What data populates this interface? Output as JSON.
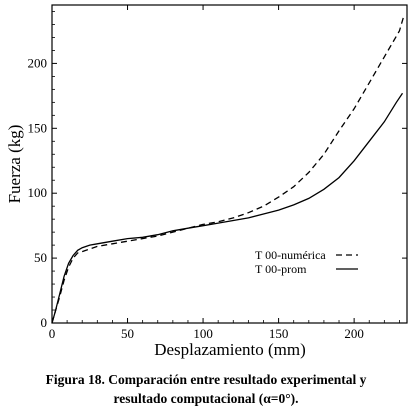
{
  "chart_data": {
    "type": "line",
    "xlabel": "Desplazamiento (mm)",
    "ylabel": "Fuerza (kg)",
    "xlim": [
      0,
      235
    ],
    "ylim": [
      0,
      245
    ],
    "xticks": [
      0,
      50,
      100,
      150,
      200
    ],
    "yticks": [
      0,
      50,
      100,
      150,
      200
    ],
    "grid": false,
    "legend_position": "right, mid-height",
    "series": [
      {
        "name": "T 00-numérica",
        "style": "dashed",
        "x": [
          0,
          2,
          5,
          8,
          11,
          14,
          17,
          20,
          25,
          30,
          40,
          50,
          60,
          70,
          80,
          90,
          100,
          110,
          120,
          130,
          140,
          150,
          160,
          170,
          180,
          190,
          200,
          210,
          220,
          230,
          233
        ],
        "y": [
          0,
          8,
          20,
          33,
          43,
          50,
          54,
          55,
          57,
          59,
          61,
          63,
          65,
          67,
          70,
          73,
          76,
          78,
          81,
          85,
          90,
          97,
          105,
          116,
          130,
          148,
          165,
          185,
          205,
          225,
          237
        ]
      },
      {
        "name": "T 00-prom",
        "style": "solid",
        "x": [
          0,
          2,
          5,
          8,
          11,
          14,
          17,
          20,
          25,
          30,
          40,
          50,
          60,
          70,
          80,
          90,
          100,
          110,
          120,
          130,
          140,
          150,
          160,
          170,
          180,
          190,
          200,
          210,
          220,
          228,
          232
        ],
        "y": [
          0,
          8,
          22,
          36,
          46,
          52,
          56,
          58,
          60,
          61,
          63,
          65,
          66,
          68,
          71,
          73,
          75,
          77,
          79,
          81,
          84,
          87,
          91,
          96,
          103,
          112,
          125,
          140,
          155,
          170,
          177
        ]
      }
    ]
  },
  "caption": {
    "line1": "Figura 18. Comparación entre resultado experimental y",
    "line2": "resultado computacional (α=0°)."
  }
}
